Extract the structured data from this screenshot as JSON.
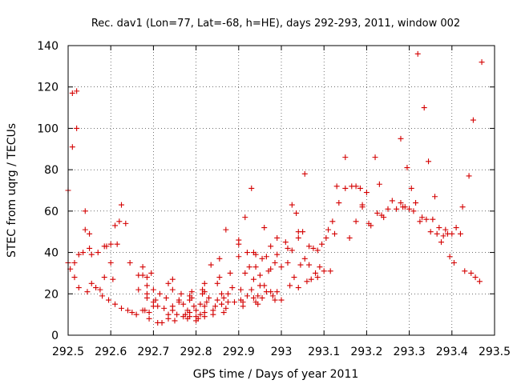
{
  "chart_data": {
    "type": "scatter",
    "title": "Rec. dav1 (Lon=77, Lat=-68, h=HE), days 292-293, 2011, window 002",
    "xlabel": "GPS time / Days of year 2011",
    "ylabel": "STEC from uqrg / TECUs",
    "xlim": [
      292.5,
      293.5
    ],
    "ylim": [
      0,
      140
    ],
    "x_ticks": [
      292.5,
      292.6,
      292.7,
      292.8,
      292.9,
      293.0,
      293.1,
      293.2,
      293.3,
      293.4,
      293.5
    ],
    "x_tick_labels": [
      "292.5",
      "292.6",
      "292.7",
      "292.8",
      "292.9",
      "293",
      "293.1",
      "293.2",
      "293.3",
      "293.4",
      "293.5"
    ],
    "y_ticks": [
      0,
      20,
      40,
      60,
      80,
      100,
      120,
      140
    ],
    "y_tick_labels": [
      "0",
      "20",
      "40",
      "60",
      "80",
      "100",
      "120",
      "140"
    ],
    "grid": true,
    "marker": "+",
    "color": "#d40000",
    "series": [
      {
        "points": [
          [
            292.5,
            70
          ],
          [
            292.5,
            35
          ],
          [
            292.505,
            32
          ],
          [
            292.51,
            117
          ],
          [
            292.51,
            91
          ],
          [
            292.515,
            28
          ],
          [
            292.515,
            35
          ],
          [
            292.52,
            118
          ],
          [
            292.52,
            100
          ],
          [
            292.525,
            23
          ],
          [
            292.525,
            39
          ],
          [
            292.535,
            40
          ],
          [
            292.54,
            60
          ],
          [
            292.54,
            51
          ],
          [
            292.545,
            21
          ],
          [
            292.55,
            49
          ],
          [
            292.55,
            42
          ],
          [
            292.555,
            39
          ],
          [
            292.555,
            25
          ],
          [
            292.565,
            23
          ],
          [
            292.57,
            40
          ],
          [
            292.575,
            22
          ],
          [
            292.58,
            19
          ],
          [
            292.585,
            28
          ],
          [
            292.585,
            43
          ],
          [
            292.59,
            43
          ],
          [
            292.595,
            17
          ],
          [
            292.6,
            35
          ],
          [
            292.6,
            44
          ],
          [
            292.605,
            27
          ],
          [
            292.61,
            53
          ],
          [
            292.61,
            15
          ],
          [
            292.615,
            44
          ],
          [
            292.62,
            55
          ],
          [
            292.625,
            63
          ],
          [
            292.625,
            13
          ],
          [
            292.635,
            54
          ],
          [
            292.64,
            12
          ],
          [
            292.645,
            35
          ],
          [
            292.65,
            11
          ],
          [
            292.66,
            10
          ],
          [
            292.665,
            29
          ],
          [
            292.665,
            22
          ],
          [
            292.675,
            29
          ],
          [
            292.675,
            12
          ],
          [
            292.675,
            33
          ],
          [
            292.68,
            12
          ],
          [
            292.685,
            28
          ],
          [
            292.685,
            24
          ],
          [
            292.685,
            20
          ],
          [
            292.685,
            18
          ],
          [
            292.69,
            11
          ],
          [
            292.69,
            8
          ],
          [
            292.695,
            30
          ],
          [
            292.7,
            22
          ],
          [
            292.7,
            16
          ],
          [
            292.7,
            14
          ],
          [
            292.705,
            17
          ],
          [
            292.71,
            14
          ],
          [
            292.71,
            6
          ],
          [
            292.715,
            20
          ],
          [
            292.72,
            6
          ],
          [
            292.725,
            13
          ],
          [
            292.73,
            18
          ],
          [
            292.735,
            10
          ],
          [
            292.735,
            8
          ],
          [
            292.735,
            25
          ],
          [
            292.745,
            27
          ],
          [
            292.745,
            22
          ],
          [
            292.745,
            12
          ],
          [
            292.745,
            14
          ],
          [
            292.75,
            7
          ],
          [
            292.755,
            10
          ],
          [
            292.76,
            16
          ],
          [
            292.76,
            17
          ],
          [
            292.765,
            20
          ],
          [
            292.77,
            15
          ],
          [
            292.77,
            9
          ],
          [
            292.775,
            10
          ],
          [
            292.78,
            12
          ],
          [
            292.78,
            8
          ],
          [
            292.785,
            11
          ],
          [
            292.785,
            9
          ],
          [
            292.785,
            19
          ],
          [
            292.785,
            17
          ],
          [
            292.79,
            21
          ],
          [
            292.79,
            18
          ],
          [
            292.795,
            14
          ],
          [
            292.8,
            7
          ],
          [
            292.8,
            9
          ],
          [
            292.8,
            12
          ],
          [
            292.805,
            8
          ],
          [
            292.81,
            10
          ],
          [
            292.81,
            15
          ],
          [
            292.815,
            20
          ],
          [
            292.815,
            22
          ],
          [
            292.82,
            9
          ],
          [
            292.82,
            11
          ],
          [
            292.82,
            14
          ],
          [
            292.82,
            21
          ],
          [
            292.82,
            25
          ],
          [
            292.825,
            16
          ],
          [
            292.83,
            18
          ],
          [
            292.835,
            34
          ],
          [
            292.84,
            12
          ],
          [
            292.84,
            10
          ],
          [
            292.845,
            14
          ],
          [
            292.85,
            17
          ],
          [
            292.85,
            25
          ],
          [
            292.855,
            37
          ],
          [
            292.855,
            28
          ],
          [
            292.86,
            15
          ],
          [
            292.86,
            20
          ],
          [
            292.865,
            18
          ],
          [
            292.865,
            11
          ],
          [
            292.87,
            13
          ],
          [
            292.87,
            51
          ],
          [
            292.875,
            20
          ],
          [
            292.875,
            16
          ],
          [
            292.88,
            30
          ],
          [
            292.885,
            23
          ],
          [
            292.89,
            16
          ],
          [
            292.9,
            46
          ],
          [
            292.9,
            44
          ],
          [
            292.9,
            38
          ],
          [
            292.905,
            22
          ],
          [
            292.905,
            17
          ],
          [
            292.91,
            16
          ],
          [
            292.91,
            14
          ],
          [
            292.915,
            57
          ],
          [
            292.915,
            30
          ],
          [
            292.92,
            40
          ],
          [
            292.92,
            19
          ],
          [
            292.925,
            33
          ],
          [
            292.93,
            71
          ],
          [
            292.93,
            22
          ],
          [
            292.935,
            40
          ],
          [
            292.935,
            27
          ],
          [
            292.935,
            18
          ],
          [
            292.94,
            16
          ],
          [
            292.94,
            39
          ],
          [
            292.94,
            33
          ],
          [
            292.945,
            19
          ],
          [
            292.945,
            15
          ],
          [
            292.95,
            29
          ],
          [
            292.95,
            24
          ],
          [
            292.955,
            37
          ],
          [
            292.955,
            18
          ],
          [
            292.96,
            52
          ],
          [
            292.96,
            24
          ],
          [
            292.965,
            21
          ],
          [
            292.965,
            38
          ],
          [
            292.97,
            31
          ],
          [
            292.975,
            43
          ],
          [
            292.975,
            32
          ],
          [
            292.975,
            21
          ],
          [
            292.98,
            19
          ],
          [
            292.985,
            35
          ],
          [
            292.985,
            17
          ],
          [
            292.99,
            47
          ],
          [
            292.99,
            39
          ],
          [
            292.99,
            21
          ],
          [
            293.0,
            33
          ],
          [
            293.0,
            17
          ],
          [
            293.01,
            45
          ],
          [
            293.015,
            42
          ],
          [
            293.015,
            35
          ],
          [
            293.02,
            24
          ],
          [
            293.025,
            63
          ],
          [
            293.025,
            41
          ],
          [
            293.03,
            28
          ],
          [
            293.035,
            59
          ],
          [
            293.04,
            50
          ],
          [
            293.04,
            47
          ],
          [
            293.04,
            23
          ],
          [
            293.045,
            34
          ],
          [
            293.05,
            50
          ],
          [
            293.055,
            78
          ],
          [
            293.055,
            37
          ],
          [
            293.06,
            26
          ],
          [
            293.065,
            43
          ],
          [
            293.065,
            34
          ],
          [
            293.07,
            27
          ],
          [
            293.075,
            42
          ],
          [
            293.08,
            30
          ],
          [
            293.085,
            41
          ],
          [
            293.085,
            28
          ],
          [
            293.09,
            33
          ],
          [
            293.095,
            44
          ],
          [
            293.1,
            31
          ],
          [
            293.105,
            47
          ],
          [
            293.11,
            51
          ],
          [
            293.115,
            31
          ],
          [
            293.12,
            55
          ],
          [
            293.125,
            49
          ],
          [
            293.13,
            72
          ],
          [
            293.135,
            64
          ],
          [
            293.15,
            86
          ],
          [
            293.15,
            71
          ],
          [
            293.16,
            47
          ],
          [
            293.165,
            72
          ],
          [
            293.175,
            72
          ],
          [
            293.175,
            55
          ],
          [
            293.185,
            71
          ],
          [
            293.19,
            63
          ],
          [
            293.19,
            62
          ],
          [
            293.2,
            69
          ],
          [
            293.205,
            54
          ],
          [
            293.21,
            53
          ],
          [
            293.22,
            86
          ],
          [
            293.225,
            59
          ],
          [
            293.23,
            73
          ],
          [
            293.235,
            58
          ],
          [
            293.24,
            57
          ],
          [
            293.25,
            61
          ],
          [
            293.26,
            65
          ],
          [
            293.27,
            61
          ],
          [
            293.28,
            95
          ],
          [
            293.28,
            64
          ],
          [
            293.285,
            62
          ],
          [
            293.29,
            62
          ],
          [
            293.295,
            81
          ],
          [
            293.3,
            61
          ],
          [
            293.305,
            71
          ],
          [
            293.31,
            60
          ],
          [
            293.315,
            64
          ],
          [
            293.32,
            136
          ],
          [
            293.325,
            55
          ],
          [
            293.33,
            57
          ],
          [
            293.335,
            110
          ],
          [
            293.34,
            56
          ],
          [
            293.345,
            84
          ],
          [
            293.35,
            50
          ],
          [
            293.355,
            56
          ],
          [
            293.36,
            67
          ],
          [
            293.365,
            49
          ],
          [
            293.37,
            52
          ],
          [
            293.375,
            45
          ],
          [
            293.38,
            48
          ],
          [
            293.385,
            51
          ],
          [
            293.39,
            49
          ],
          [
            293.395,
            38
          ],
          [
            293.4,
            49
          ],
          [
            293.405,
            35
          ],
          [
            293.41,
            52
          ],
          [
            293.42,
            49
          ],
          [
            293.425,
            62
          ],
          [
            293.43,
            31
          ],
          [
            293.44,
            77
          ],
          [
            293.445,
            30
          ],
          [
            293.45,
            104
          ],
          [
            293.455,
            28
          ],
          [
            293.465,
            26
          ],
          [
            293.47,
            132
          ]
        ]
      }
    ]
  }
}
